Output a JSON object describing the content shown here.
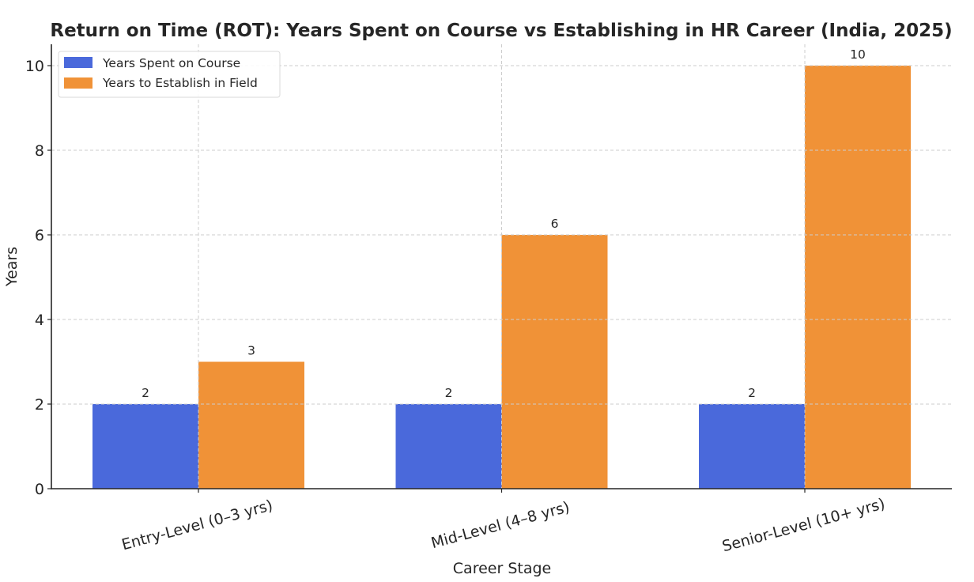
{
  "chart_data": {
    "type": "bar",
    "title": "Return on Time (ROT): Years Spent on Course vs Establishing in HR Career (India, 2025)",
    "xlabel": "Career Stage",
    "ylabel": "Years",
    "categories": [
      "Entry-Level (0–3 yrs)",
      "Mid-Level (4–8 yrs)",
      "Senior-Level (10+ yrs)"
    ],
    "series": [
      {
        "name": "Years Spent on Course",
        "color": "#4a69db",
        "values": [
          2,
          2,
          2
        ]
      },
      {
        "name": "Years to Establish in Field",
        "color": "#f09237",
        "values": [
          3,
          6,
          10
        ]
      }
    ],
    "ylim": [
      0,
      10.5
    ],
    "yticks": [
      0,
      2,
      4,
      6,
      8,
      10
    ],
    "grid": true,
    "legend": "top-left",
    "data_labels": true
  }
}
